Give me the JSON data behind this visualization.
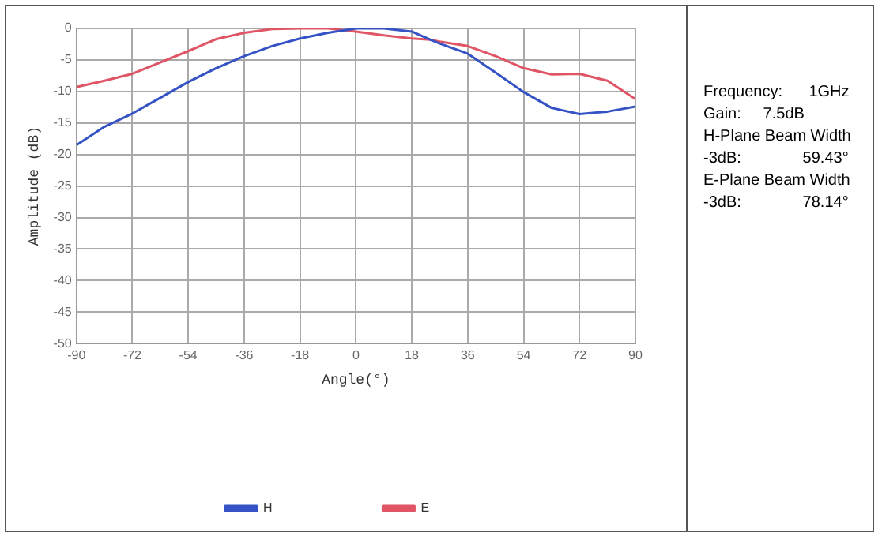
{
  "chart_data": {
    "type": "line",
    "xlabel": "Angle(°)",
    "ylabel": "Amplitude (dB)",
    "xlim": [
      -90,
      90
    ],
    "xticks": [
      -90,
      -72,
      -54,
      -36,
      -18,
      0,
      18,
      36,
      54,
      72,
      90
    ],
    "ylim": [
      -50,
      0
    ],
    "yticks": [
      -50,
      -45,
      -40,
      -35,
      -30,
      -25,
      -20,
      -15,
      -10,
      -5,
      0
    ],
    "grid": true,
    "legend": "bottom",
    "marker": "none",
    "line_style": "solid",
    "x": [
      -90,
      -81,
      -72,
      -63,
      -54,
      -45,
      -36,
      -27,
      -18,
      -9,
      0,
      9,
      18,
      24,
      27,
      36,
      45,
      54,
      63,
      72,
      81,
      90
    ],
    "series": [
      {
        "name": "H",
        "color": "#3553c4",
        "values": [
          -18.5,
          -15.6,
          -13.5,
          -11,
          -8.5,
          -6.3,
          -4.4,
          -2.8,
          -1.6,
          -0.7,
          0,
          0,
          -0.5,
          -1.8,
          -2.4,
          -4,
          -7,
          -10.1,
          -12.6,
          -13.6,
          -13.2,
          -12.4
        ]
      },
      {
        "name": "E",
        "color": "#e05565",
        "values": [
          -9.3,
          -8.3,
          -7.2,
          -5.4,
          -3.6,
          -1.7,
          -0.7,
          -0.1,
          0,
          0,
          -0.5,
          -1.1,
          -1.6,
          -1.8,
          -2.1,
          -2.8,
          -4.4,
          -6.3,
          -7.3,
          -7.2,
          -8.3,
          -11.2
        ]
      }
    ],
    "annotations": [
      "Frequency:      1GHz",
      "Gain:     7.5dB",
      "H-Plane Beam Width",
      "-3dB:              59.43°",
      "E-Plane Beam Width",
      "-3dB:              78.14°"
    ]
  }
}
